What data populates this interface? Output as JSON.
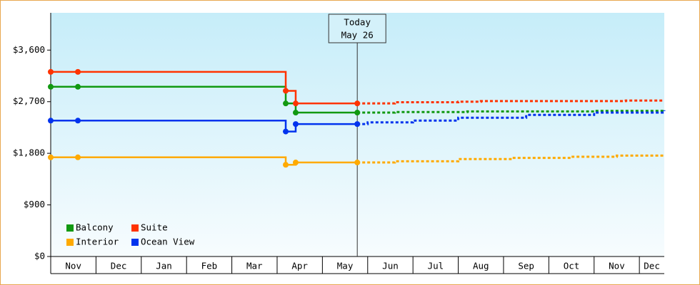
{
  "chart_data": {
    "type": "step-line",
    "xlim": [
      0,
      13.55
    ],
    "xticks": [
      {
        "value": 0,
        "label": "Nov"
      },
      {
        "value": 1,
        "label": "Dec"
      },
      {
        "value": 2,
        "label": "Jan"
      },
      {
        "value": 3,
        "label": "Feb"
      },
      {
        "value": 4,
        "label": "Mar"
      },
      {
        "value": 5,
        "label": "Apr"
      },
      {
        "value": 6,
        "label": "May"
      },
      {
        "value": 7,
        "label": "Jun"
      },
      {
        "value": 8,
        "label": "Jul"
      },
      {
        "value": 9,
        "label": "Aug"
      },
      {
        "value": 10,
        "label": "Sep"
      },
      {
        "value": 11,
        "label": "Oct"
      },
      {
        "value": 12,
        "label": "Nov"
      },
      {
        "value": 13,
        "label": "Dec"
      }
    ],
    "ylim": [
      0,
      4250
    ],
    "yticks": [
      {
        "value": 0,
        "label": "$0"
      },
      {
        "value": 900,
        "label": "$900"
      },
      {
        "value": 1800,
        "label": "$1,800"
      },
      {
        "value": 2700,
        "label": "$2,700"
      },
      {
        "value": 3600,
        "label": "$3,600"
      }
    ],
    "today": {
      "x": 6.77,
      "label": [
        "Today",
        "May 26"
      ]
    },
    "series": [
      {
        "name": "Balcony",
        "color": "#119911",
        "x": [
          0,
          0.6,
          5.19,
          5.41,
          6.77
        ],
        "values": [
          2960,
          2960,
          2670,
          2510,
          2510
        ],
        "forecast_x": [
          6.77,
          7.6,
          9.2,
          12.0,
          13.55
        ],
        "forecast_values": [
          2510,
          2520,
          2530,
          2540,
          2550
        ]
      },
      {
        "name": "Suite",
        "color": "#ff3300",
        "x": [
          0,
          0.6,
          5.19,
          5.41,
          6.77
        ],
        "values": [
          3220,
          3220,
          2890,
          2670,
          2670
        ],
        "forecast_x": [
          6.77,
          7.6,
          9.0,
          9.5,
          12.7,
          13.55
        ],
        "forecast_values": [
          2670,
          2690,
          2700,
          2710,
          2720,
          2720
        ]
      },
      {
        "name": "Interior",
        "color": "#ffaa00",
        "x": [
          0,
          0.6,
          5.19,
          5.41,
          6.77
        ],
        "values": [
          1730,
          1730,
          1600,
          1640,
          1640
        ],
        "forecast_x": [
          6.77,
          7.6,
          9.0,
          10.2,
          11.5,
          12.5,
          13.55
        ],
        "forecast_values": [
          1640,
          1660,
          1700,
          1720,
          1740,
          1760,
          1770
        ]
      },
      {
        "name": "Ocean View",
        "color": "#0033ee",
        "x": [
          0,
          0.6,
          5.19,
          5.41,
          6.77
        ],
        "values": [
          2370,
          2370,
          2180,
          2310,
          2310
        ],
        "forecast_x": [
          6.77,
          7.0,
          8.0,
          9.0,
          10.5,
          12.0,
          13.55
        ],
        "forecast_values": [
          2310,
          2340,
          2370,
          2420,
          2470,
          2510,
          2550
        ]
      }
    ]
  }
}
